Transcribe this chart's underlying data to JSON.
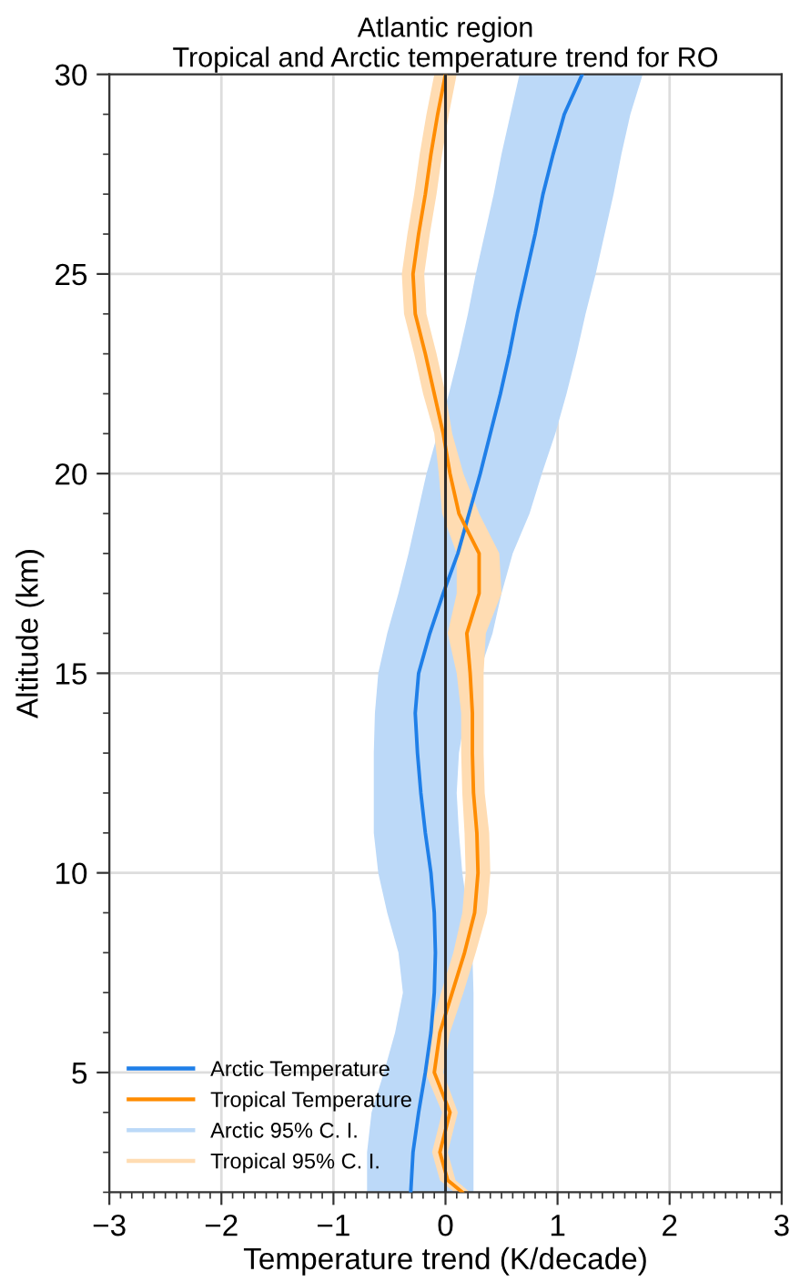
{
  "chart_data": {
    "type": "line",
    "orientation": "horizontal",
    "title": "Atlantic region",
    "subtitle": "Tropical and Arctic temperature trend for RO",
    "xlabel": "Temperature trend (K/decade)",
    "ylabel": "Altitude (km)",
    "xlim": [
      -3,
      3
    ],
    "xticks": [
      -3,
      -2,
      -1,
      0,
      1,
      2,
      3
    ],
    "ylim": [
      2,
      30
    ],
    "yticks": [
      5,
      10,
      15,
      20,
      25,
      30
    ],
    "grid": true,
    "legend": "bottom left",
    "annotations": [
      "Arctic 95% C. I.",
      "Tropical 95% C. I."
    ],
    "ref_lines": [
      {
        "axis": "x",
        "value": 0,
        "color": "#2b2b2b"
      }
    ],
    "series": [
      {
        "name": "Arctic Temperature",
        "color": "#1f7fe8",
        "x": [
          2,
          3,
          4,
          5,
          6,
          7,
          8,
          9,
          10,
          11,
          12,
          13,
          14,
          15,
          16,
          17,
          18,
          19,
          20,
          21,
          22,
          23,
          24,
          25,
          26,
          27,
          28,
          29,
          30
        ],
        "values": [
          -0.31,
          -0.29,
          -0.24,
          -0.18,
          -0.13,
          -0.1,
          -0.09,
          -0.1,
          -0.13,
          -0.18,
          -0.22,
          -0.25,
          -0.27,
          -0.24,
          -0.14,
          -0.02,
          0.11,
          0.21,
          0.31,
          0.4,
          0.49,
          0.57,
          0.64,
          0.72,
          0.8,
          0.87,
          0.96,
          1.06,
          1.22
        ],
        "lower": [
          -0.7,
          -0.7,
          -0.66,
          -0.55,
          -0.45,
          -0.38,
          -0.42,
          -0.52,
          -0.6,
          -0.64,
          -0.64,
          -0.64,
          -0.63,
          -0.6,
          -0.52,
          -0.42,
          -0.33,
          -0.25,
          -0.17,
          -0.07,
          0.03,
          0.12,
          0.2,
          0.27,
          0.35,
          0.43,
          0.5,
          0.58,
          0.66
        ],
        "upper": [
          0.25,
          0.25,
          0.25,
          0.25,
          0.25,
          0.25,
          0.24,
          0.2,
          0.15,
          0.12,
          0.1,
          0.12,
          0.18,
          0.3,
          0.42,
          0.5,
          0.6,
          0.75,
          0.86,
          0.98,
          1.08,
          1.17,
          1.25,
          1.34,
          1.42,
          1.5,
          1.57,
          1.65,
          1.76
        ]
      },
      {
        "name": "Tropical Temperature",
        "color": "#ff8c00",
        "x": [
          2,
          2.3,
          3,
          4,
          5,
          6,
          7,
          8,
          9,
          10,
          11,
          12,
          13,
          14,
          15,
          16,
          17,
          18,
          19,
          20,
          21,
          22,
          23,
          24,
          25,
          26,
          27,
          28,
          29,
          30
        ],
        "values": [
          0.15,
          0.02,
          -0.05,
          0.04,
          -0.1,
          -0.05,
          0.06,
          0.17,
          0.26,
          0.29,
          0.28,
          0.25,
          0.24,
          0.24,
          0.22,
          0.19,
          0.3,
          0.3,
          0.12,
          0.04,
          -0.02,
          -0.1,
          -0.18,
          -0.27,
          -0.29,
          -0.24,
          -0.18,
          -0.13,
          -0.07,
          0.0
        ],
        "lower": [
          0.08,
          -0.05,
          -0.12,
          -0.03,
          -0.18,
          -0.14,
          -0.04,
          0.07,
          0.15,
          0.18,
          0.17,
          0.15,
          0.14,
          0.14,
          0.1,
          0.02,
          0.1,
          0.1,
          -0.03,
          -0.06,
          -0.1,
          -0.2,
          -0.28,
          -0.37,
          -0.39,
          -0.34,
          -0.28,
          -0.23,
          -0.17,
          -0.1
        ],
        "upper": [
          0.22,
          0.09,
          0.02,
          0.11,
          -0.02,
          0.04,
          0.16,
          0.27,
          0.37,
          0.4,
          0.39,
          0.35,
          0.34,
          0.34,
          0.34,
          0.36,
          0.5,
          0.48,
          0.3,
          0.16,
          0.06,
          0.0,
          -0.08,
          -0.17,
          -0.19,
          -0.14,
          -0.08,
          -0.03,
          0.03,
          0.1
        ]
      }
    ]
  }
}
